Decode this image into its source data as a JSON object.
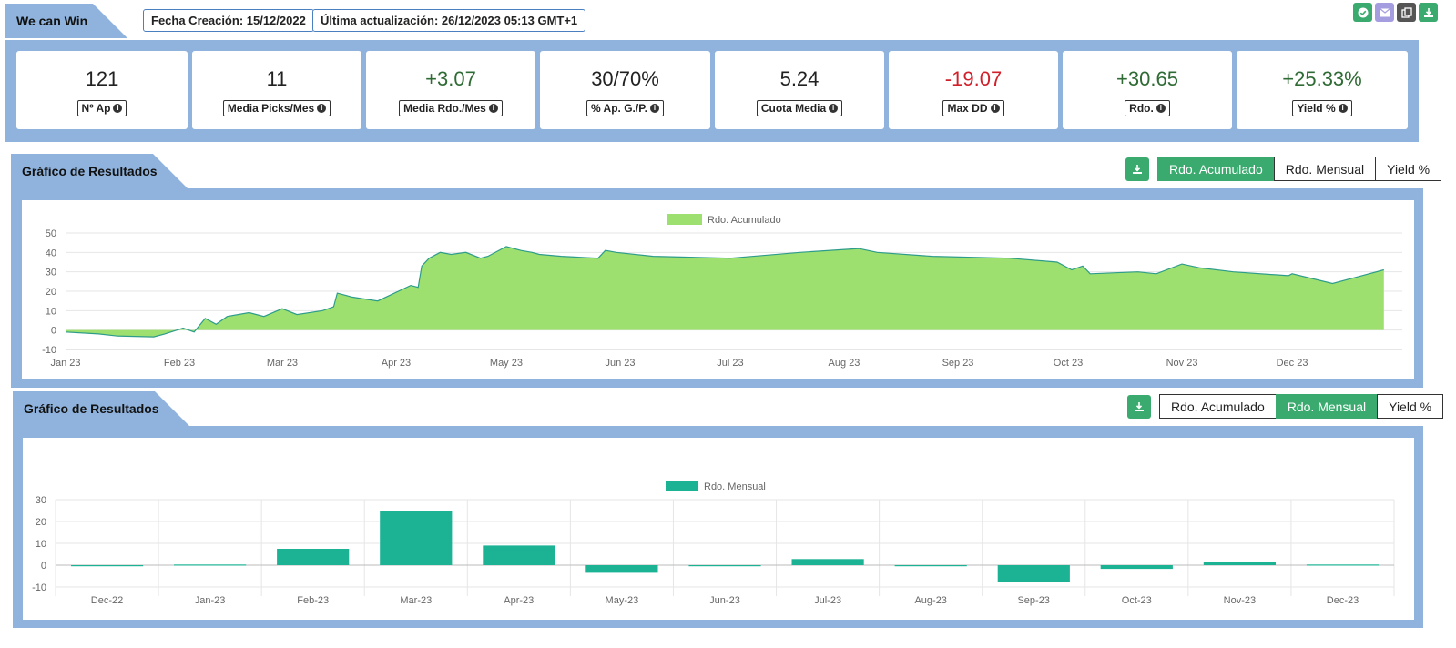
{
  "header": {
    "title": "We can Win",
    "created": "Fecha Creación: 15/12/2022",
    "updated": "Última actualización: 26/12/2023 05:13 GMT+1",
    "icons": [
      "check-icon",
      "mail-icon",
      "copy-icon",
      "download-icon"
    ],
    "icon_colors": [
      "#3aaa6e",
      "#a49de0",
      "#555555",
      "#3aaa6e"
    ]
  },
  "stats": [
    {
      "value": "121",
      "label": "Nº Ap",
      "tone": "neu"
    },
    {
      "value": "11",
      "label": "Media Picks/Mes",
      "tone": "neu"
    },
    {
      "value": "+3.07",
      "label": "Media Rdo./Mes",
      "tone": "pos"
    },
    {
      "value": "30/70%",
      "label": "% Ap. G./P.",
      "tone": "neu"
    },
    {
      "value": "5.24",
      "label": "Cuota Media",
      "tone": "neu"
    },
    {
      "value": "-19.07",
      "label": "Max DD",
      "tone": "neg"
    },
    {
      "value": "+30.65",
      "label": "Rdo.",
      "tone": "pos"
    },
    {
      "value": "+25.33%",
      "label": "Yield %",
      "tone": "pos"
    }
  ],
  "section1": {
    "title": "Gráfico de Resultados",
    "buttons": [
      "Rdo. Acumulado",
      "Rdo. Mensual",
      "Yield %"
    ],
    "active": 0
  },
  "section2": {
    "title": "Gráfico de Resultados",
    "buttons": [
      "Rdo. Acumulado",
      "Rdo. Mensual",
      "Yield %"
    ],
    "active": 1
  },
  "colors": {
    "accent": "#3aaa6e",
    "panel": "#8fb3dd",
    "area_fill": "#9de070",
    "area_line": "#2e9c8a",
    "bar": "#1cb394"
  },
  "chart_data": [
    {
      "type": "area",
      "legend": "Rdo. Acumulado",
      "legend_position": "top-center",
      "grid": true,
      "ylim": [
        -10,
        50
      ],
      "yticks": [
        50,
        40,
        30,
        20,
        10,
        0,
        -10
      ],
      "xticks": [
        "Jan 23",
        "Feb 23",
        "Mar 23",
        "Apr 23",
        "May 23",
        "Jun 23",
        "Jul 23",
        "Aug 23",
        "Sep 23",
        "Oct 23",
        "Nov 23",
        "Dec 23"
      ],
      "x": [
        "2023-01-01",
        "2023-01-10",
        "2023-01-15",
        "2023-01-25",
        "2023-01-28",
        "2023-02-02",
        "2023-02-05",
        "2023-02-08",
        "2023-02-11",
        "2023-02-14",
        "2023-02-20",
        "2023-02-24",
        "2023-03-01",
        "2023-03-05",
        "2023-03-12",
        "2023-03-15",
        "2023-03-16",
        "2023-03-20",
        "2023-03-27",
        "2023-04-05",
        "2023-04-07",
        "2023-04-08",
        "2023-04-10",
        "2023-04-13",
        "2023-04-16",
        "2023-04-20",
        "2023-04-24",
        "2023-04-26",
        "2023-05-01",
        "2023-05-05",
        "2023-05-08",
        "2023-05-10",
        "2023-05-16",
        "2023-05-26",
        "2023-05-28",
        "2023-05-31",
        "2023-06-10",
        "2023-07-01",
        "2023-07-20",
        "2023-08-05",
        "2023-08-10",
        "2023-08-25",
        "2023-09-15",
        "2023-09-28",
        "2023-10-02",
        "2023-10-05",
        "2023-10-07",
        "2023-10-20",
        "2023-10-25",
        "2023-11-01",
        "2023-11-06",
        "2023-11-15",
        "2023-11-30",
        "2023-12-01",
        "2023-12-12",
        "2023-12-20",
        "2023-12-26"
      ],
      "values": [
        -1,
        -2,
        -3,
        -3.5,
        -2,
        1,
        -1,
        6,
        3,
        7,
        9,
        7,
        11,
        8,
        10,
        12,
        19,
        17,
        15,
        23,
        22,
        33,
        37,
        40,
        39,
        40,
        37,
        38,
        43,
        41,
        40,
        39,
        38,
        37,
        41,
        40,
        38,
        37,
        40,
        42,
        40,
        38,
        37,
        35,
        31,
        33,
        29,
        30,
        29,
        34,
        32,
        30,
        28,
        29,
        24,
        28,
        31
      ]
    },
    {
      "type": "bar",
      "legend": "Rdo. Mensual",
      "legend_position": "top-center",
      "grid": true,
      "ylim": [
        -10,
        30
      ],
      "yticks": [
        30,
        20,
        10,
        0,
        -10
      ],
      "categories": [
        "Dec-22",
        "Jan-23",
        "Feb-23",
        "Mar-23",
        "Apr-23",
        "May-23",
        "Jun-23",
        "Jul-23",
        "Aug-23",
        "Sep-23",
        "Oct-23",
        "Nov-23",
        "Dec-23"
      ],
      "values": [
        -0.3,
        0.3,
        7.5,
        25,
        9,
        -3.5,
        -0.3,
        2.8,
        -0.4,
        -7.5,
        -1.7,
        1.3,
        0.3
      ]
    }
  ]
}
